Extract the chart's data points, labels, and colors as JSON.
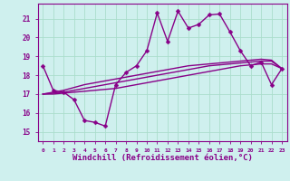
{
  "background_color": "#cff0ee",
  "grid_color": "#aaddcc",
  "line_color": "#880088",
  "marker": "D",
  "markersize": 2.5,
  "linewidth": 1.0,
  "xlabel": "Windchill (Refroidissement éolien,°C)",
  "xlabel_fontsize": 6.5,
  "xtick_labels": [
    "0",
    "1",
    "2",
    "3",
    "4",
    "5",
    "6",
    "7",
    "8",
    "9",
    "10",
    "11",
    "12",
    "13",
    "14",
    "15",
    "16",
    "17",
    "18",
    "19",
    "20",
    "21",
    "22",
    "23"
  ],
  "ytick_labels": [
    "15",
    "16",
    "17",
    "18",
    "19",
    "20",
    "21"
  ],
  "ylim": [
    14.5,
    21.8
  ],
  "xlim": [
    -0.5,
    23.5
  ],
  "series": [
    [
      18.5,
      17.2,
      17.1,
      16.7,
      15.6,
      15.5,
      15.3,
      17.5,
      18.15,
      18.5,
      19.3,
      21.3,
      19.8,
      21.4,
      20.5,
      20.7,
      21.2,
      21.25,
      20.3,
      19.3,
      18.5,
      18.7,
      17.5,
      18.35
    ],
    [
      17.0,
      17.0,
      17.05,
      17.1,
      17.15,
      17.2,
      17.25,
      17.3,
      17.4,
      17.5,
      17.6,
      17.7,
      17.8,
      17.9,
      18.0,
      18.1,
      18.2,
      18.3,
      18.4,
      18.5,
      18.55,
      18.6,
      18.6,
      18.35
    ],
    [
      17.0,
      17.05,
      17.1,
      17.2,
      17.3,
      17.4,
      17.5,
      17.6,
      17.7,
      17.8,
      17.9,
      18.0,
      18.1,
      18.2,
      18.3,
      18.4,
      18.5,
      18.55,
      18.6,
      18.65,
      18.7,
      18.75,
      18.75,
      18.35
    ],
    [
      17.0,
      17.1,
      17.2,
      17.35,
      17.5,
      17.6,
      17.7,
      17.8,
      17.9,
      18.0,
      18.1,
      18.2,
      18.3,
      18.4,
      18.5,
      18.55,
      18.6,
      18.65,
      18.7,
      18.75,
      18.8,
      18.85,
      18.8,
      18.35
    ]
  ]
}
